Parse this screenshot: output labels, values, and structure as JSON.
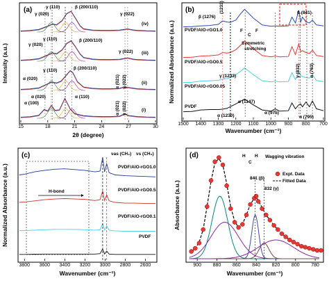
{
  "panels": {
    "a": {
      "label": "(a)",
      "xlabel": "2θ (degree)",
      "ylabel": "Intensity (a.u.)",
      "xticks": [
        "15",
        "18",
        "21",
        "24",
        "27",
        "30"
      ],
      "traces": [
        "(i)",
        "(ii)",
        "(iii)",
        "(iv)"
      ],
      "annotations": {
        "i_a100": "α (100)",
        "i_a020": "α (020)",
        "i_a110": "α (110)",
        "i_a021": "α (021)",
        "i_g022": "γ (022)",
        "ii_a020": "α (020)",
        "ii_g110": "γ (110)",
        "ii_b200": "β (200/110)",
        "ii_a021": "α (021)",
        "ii_g022": "γ (022)",
        "iii_g020": "γ (020)",
        "iii_g110": "γ (110)",
        "iii_b200": "β (200/110)",
        "iii_g022": "γ (022)",
        "iv_g020": "γ (020)",
        "iv_g110": "γ (110)",
        "iv_b200": "β (200/110)",
        "iv_g022": "γ (022)"
      }
    },
    "b": {
      "label": "(b)",
      "xlabel": "Wavenumber (cm⁻¹)",
      "ylabel": "Normalized Absorbance (a.u.)",
      "xticks": [
        "1500",
        "1400",
        "1300",
        "1200",
        "1100",
        "1000",
        "900",
        "800",
        "700"
      ],
      "trace_labels": {
        "t1": "PVDF/AlO-rGO1.0",
        "t2": "PVDF/AlO-rGO0.5",
        "t3": "PVDF/AlO-rGO0.05",
        "t4": "PVDF"
      },
      "annotations": {
        "b1276": "β (1276)",
        "g1233": "(1233)",
        "b841": "β (841)",
        "sym": "Symmetric",
        "sym2": "stretching",
        "cf_f1": "F",
        "cf_c": "C",
        "cf_f2": "F",
        "g1233b": "γ (1233)",
        "a1230": "α (1230)",
        "a1147": "α (1147)",
        "a975": "α (975)",
        "g832": "γ (832)",
        "a795": "α (795)",
        "a763": "α (763)"
      }
    },
    "c": {
      "label": "(c)",
      "xlabel": "Wavenumber (cm⁻¹)",
      "ylabel": "Normalized Absorbance (a.u.)",
      "xticks": [
        "3800",
        "3600",
        "3400",
        "3200",
        "3000",
        "2800",
        "2600"
      ],
      "trace_labels": {
        "t1": "PVDF/AlO-rGO1.0",
        "t2": "PVDF/AlO-rGO0.5",
        "t3": "PVDF/AlO-rGO0.1",
        "t4": "PVDF"
      },
      "annotations": {
        "hbond": "H-bond",
        "vas": "νas (CH₂)",
        "vs": "νs (CH₂)"
      }
    },
    "d": {
      "label": "(d)",
      "xlabel": "Wavenumber (cm⁻¹)",
      "ylabel": "Absorbance (a.u.)",
      "xticks": [
        "900",
        "880",
        "860",
        "840",
        "820",
        "800",
        "780"
      ],
      "annotations": {
        "wag": "Wagging vibration",
        "h1": "H",
        "c1": "C",
        "h2": "H",
        "b841": "841 (β)",
        "g832": "832 (γ)"
      },
      "legend": {
        "expt": "Expt. Data",
        "fit": "Fitted Data"
      }
    }
  },
  "chart_data": [
    {
      "type": "line",
      "panel": "a",
      "xlabel": "2θ (degree)",
      "ylabel": "Intensity (a.u.)",
      "xlim": [
        15,
        30
      ],
      "peaks_2theta": {
        "alpha_100": 17.7,
        "alpha_020": 18.4,
        "gamma_020": 18.5,
        "gamma_110": 20.0,
        "alpha_110": 19.9,
        "beta_200_110": 20.7,
        "alpha_021": 26.6,
        "gamma_022": 26.9
      },
      "series": [
        {
          "name": "(i)",
          "x": [
            15,
            16,
            17,
            17.6,
            18,
            18.4,
            18.8,
            19.3,
            19.9,
            20.5,
            21,
            22,
            23,
            24,
            25,
            26,
            26.6,
            27,
            28,
            29,
            30
          ],
          "y": [
            0.05,
            0.07,
            0.14,
            0.42,
            0.35,
            0.62,
            0.38,
            0.4,
            0.95,
            0.45,
            0.22,
            0.12,
            0.09,
            0.08,
            0.08,
            0.1,
            0.22,
            0.13,
            0.08,
            0.06,
            0.05
          ]
        },
        {
          "name": "(ii)",
          "x": [
            15,
            16,
            17,
            18,
            18.4,
            19,
            19.5,
            20,
            20.5,
            20.8,
            21.3,
            22,
            23,
            24,
            25,
            26,
            26.6,
            27,
            28,
            29,
            30
          ],
          "y": [
            0.05,
            0.07,
            0.12,
            0.32,
            0.4,
            0.36,
            0.45,
            0.7,
            0.95,
            0.85,
            0.42,
            0.16,
            0.1,
            0.08,
            0.08,
            0.1,
            0.18,
            0.14,
            0.08,
            0.06,
            0.05
          ]
        },
        {
          "name": "(iii)",
          "x": [
            15,
            16,
            17,
            18,
            18.5,
            19,
            19.6,
            20.1,
            20.6,
            21,
            21.6,
            22,
            23,
            24,
            25,
            26,
            26.9,
            27.5,
            28,
            29,
            30
          ],
          "y": [
            0.05,
            0.07,
            0.12,
            0.3,
            0.4,
            0.36,
            0.55,
            0.85,
            0.98,
            0.75,
            0.35,
            0.18,
            0.1,
            0.08,
            0.08,
            0.09,
            0.16,
            0.1,
            0.08,
            0.06,
            0.05
          ]
        },
        {
          "name": "(iv)",
          "x": [
            15,
            16,
            17,
            18,
            18.5,
            19,
            19.6,
            20.1,
            20.6,
            21,
            21.6,
            22,
            23,
            24,
            25,
            26,
            26.9,
            27.5,
            28,
            29,
            30
          ],
          "y": [
            0.05,
            0.07,
            0.12,
            0.28,
            0.38,
            0.35,
            0.55,
            0.88,
            1.0,
            0.72,
            0.3,
            0.15,
            0.09,
            0.08,
            0.08,
            0.09,
            0.15,
            0.1,
            0.08,
            0.06,
            0.05
          ]
        }
      ]
    },
    {
      "type": "line",
      "panel": "b",
      "xlabel": "Wavenumber (cm⁻¹)",
      "ylabel": "Normalized Absorbance (a.u.)",
      "xlim": [
        1500,
        700
      ],
      "marked_peaks": [
        1276,
        1233,
        1230,
        1147,
        975,
        841,
        832,
        795,
        763
      ],
      "series": [
        {
          "name": "PVDF/AlO-rGO1.0",
          "x": [
            1500,
            1450,
            1400,
            1350,
            1300,
            1276,
            1250,
            1233,
            1200,
            1170,
            1150,
            1100,
            1050,
            1000,
            975,
            950,
            900,
            880,
            860,
            841,
            830,
            820,
            800,
            780,
            763,
            740,
            700
          ],
          "y": [
            0.05,
            0.06,
            0.1,
            0.12,
            0.18,
            0.35,
            0.3,
            0.28,
            0.4,
            0.75,
            0.95,
            0.5,
            0.15,
            0.08,
            0.1,
            0.08,
            0.1,
            0.55,
            0.25,
            0.9,
            0.3,
            0.55,
            0.3,
            0.25,
            0.4,
            0.15,
            0.1
          ]
        },
        {
          "name": "PVDF/AlO-rGO0.5",
          "x": [
            1500,
            1450,
            1400,
            1350,
            1300,
            1276,
            1250,
            1233,
            1200,
            1170,
            1150,
            1100,
            1050,
            1000,
            975,
            950,
            900,
            880,
            860,
            841,
            830,
            820,
            800,
            780,
            763,
            740,
            700
          ],
          "y": [
            0.05,
            0.06,
            0.12,
            0.14,
            0.18,
            0.3,
            0.28,
            0.3,
            0.45,
            0.7,
            0.9,
            0.5,
            0.15,
            0.08,
            0.12,
            0.08,
            0.1,
            0.6,
            0.2,
            0.75,
            0.35,
            0.4,
            0.3,
            0.25,
            0.42,
            0.15,
            0.1
          ]
        },
        {
          "name": "PVDF/AlO-rGO0.05",
          "x": [
            1500,
            1450,
            1400,
            1350,
            1300,
            1276,
            1250,
            1233,
            1200,
            1170,
            1150,
            1100,
            1050,
            1000,
            975,
            950,
            900,
            880,
            860,
            841,
            830,
            820,
            800,
            780,
            763,
            740,
            700
          ],
          "y": [
            0.05,
            0.06,
            0.12,
            0.14,
            0.16,
            0.22,
            0.25,
            0.3,
            0.45,
            0.65,
            0.8,
            0.45,
            0.14,
            0.08,
            0.12,
            0.08,
            0.1,
            0.55,
            0.2,
            0.6,
            0.4,
            0.35,
            0.3,
            0.28,
            0.45,
            0.15,
            0.1
          ]
        },
        {
          "name": "PVDF",
          "x": [
            1500,
            1450,
            1400,
            1350,
            1300,
            1276,
            1250,
            1233,
            1200,
            1170,
            1150,
            1100,
            1050,
            1000,
            975,
            950,
            900,
            880,
            860,
            841,
            830,
            820,
            800,
            780,
            763,
            740,
            700
          ],
          "y": [
            0.05,
            0.06,
            0.14,
            0.16,
            0.16,
            0.18,
            0.22,
            0.3,
            0.45,
            0.6,
            0.7,
            0.4,
            0.14,
            0.08,
            0.2,
            0.08,
            0.1,
            0.5,
            0.2,
            0.4,
            0.45,
            0.3,
            0.55,
            0.3,
            0.6,
            0.2,
            0.1
          ]
        }
      ]
    },
    {
      "type": "line",
      "panel": "c",
      "xlabel": "Wavenumber (cm⁻¹)",
      "ylabel": "Normalized Absorbance (a.u.)",
      "xlim": [
        3850,
        2500
      ],
      "marked_peaks": {
        "vas_CH2": 3024,
        "vs_CH2": 2984
      },
      "series": [
        {
          "name": "PVDF/AlO-rGO1.0",
          "x": [
            3850,
            3800,
            3700,
            3600,
            3500,
            3400,
            3300,
            3200,
            3100,
            3050,
            3024,
            3005,
            2984,
            2960,
            2900,
            2800,
            2700,
            2600,
            2500
          ],
          "y": [
            0.3,
            0.32,
            0.38,
            0.42,
            0.45,
            0.46,
            0.44,
            0.42,
            0.38,
            0.4,
            0.75,
            0.38,
            0.6,
            0.36,
            0.3,
            0.28,
            0.27,
            0.26,
            0.25
          ]
        },
        {
          "name": "PVDF/AlO-rGO0.5",
          "x": [
            3850,
            3800,
            3700,
            3600,
            3500,
            3400,
            3300,
            3200,
            3100,
            3050,
            3024,
            3005,
            2984,
            2960,
            2900,
            2800,
            2700,
            2600,
            2500
          ],
          "y": [
            0.2,
            0.21,
            0.24,
            0.27,
            0.29,
            0.3,
            0.29,
            0.28,
            0.25,
            0.27,
            0.5,
            0.25,
            0.4,
            0.24,
            0.2,
            0.18,
            0.18,
            0.17,
            0.17
          ]
        },
        {
          "name": "PVDF/AlO-rGO0.1",
          "x": [
            3850,
            3800,
            3700,
            3600,
            3500,
            3400,
            3300,
            3200,
            3100,
            3050,
            3024,
            3005,
            2984,
            2960,
            2900,
            2800,
            2700,
            2600,
            2500
          ],
          "y": [
            0.12,
            0.12,
            0.13,
            0.14,
            0.15,
            0.15,
            0.15,
            0.14,
            0.13,
            0.14,
            0.3,
            0.13,
            0.24,
            0.13,
            0.11,
            0.1,
            0.1,
            0.1,
            0.1
          ]
        },
        {
          "name": "PVDF",
          "x": [
            3850,
            3800,
            3700,
            3600,
            3500,
            3400,
            3300,
            3200,
            3100,
            3050,
            3024,
            3005,
            2984,
            2960,
            2900,
            2800,
            2700,
            2600,
            2500
          ],
          "y": [
            0.04,
            0.04,
            0.045,
            0.05,
            0.05,
            0.05,
            0.05,
            0.05,
            0.05,
            0.06,
            0.18,
            0.05,
            0.13,
            0.05,
            0.04,
            0.04,
            0.04,
            0.04,
            0.04
          ]
        }
      ]
    },
    {
      "type": "line",
      "panel": "d",
      "xlabel": "Wavenumber (cm⁻¹)",
      "ylabel": "Absorbance (a.u.)",
      "xlim": [
        910,
        773
      ],
      "marked_peaks": {
        "beta": 841,
        "gamma": 832
      },
      "series": [
        {
          "name": "Expt. Data",
          "x": [
            906,
            902,
            898,
            894,
            890,
            886,
            882,
            878,
            874,
            870,
            866,
            862,
            858,
            854,
            850,
            846,
            842,
            840,
            838,
            834,
            830,
            826,
            822,
            818,
            814,
            810,
            806,
            802,
            798,
            794,
            790,
            786,
            782,
            778,
            774
          ],
          "y": [
            0.07,
            0.1,
            0.15,
            0.28,
            0.5,
            0.75,
            0.93,
            0.97,
            0.9,
            0.7,
            0.48,
            0.35,
            0.3,
            0.33,
            0.42,
            0.52,
            0.58,
            0.6,
            0.55,
            0.48,
            0.42,
            0.37,
            0.32,
            0.28,
            0.24,
            0.21,
            0.18,
            0.16,
            0.14,
            0.12,
            0.11,
            0.1,
            0.09,
            0.08,
            0.08
          ]
        },
        {
          "name": "Fitted Data",
          "x": [
            906,
            902,
            898,
            894,
            890,
            886,
            882,
            878,
            874,
            870,
            866,
            862,
            858,
            854,
            850,
            846,
            842,
            840,
            838,
            834,
            830,
            826,
            822,
            818,
            814,
            810,
            806,
            802,
            798,
            794,
            790,
            786,
            782,
            778,
            774
          ],
          "y": [
            0.07,
            0.1,
            0.16,
            0.28,
            0.5,
            0.74,
            0.92,
            0.96,
            0.9,
            0.72,
            0.5,
            0.36,
            0.3,
            0.33,
            0.42,
            0.52,
            0.58,
            0.59,
            0.56,
            0.49,
            0.42,
            0.37,
            0.32,
            0.28,
            0.24,
            0.21,
            0.18,
            0.16,
            0.14,
            0.12,
            0.11,
            0.1,
            0.09,
            0.08,
            0.08
          ]
        }
      ]
    }
  ]
}
